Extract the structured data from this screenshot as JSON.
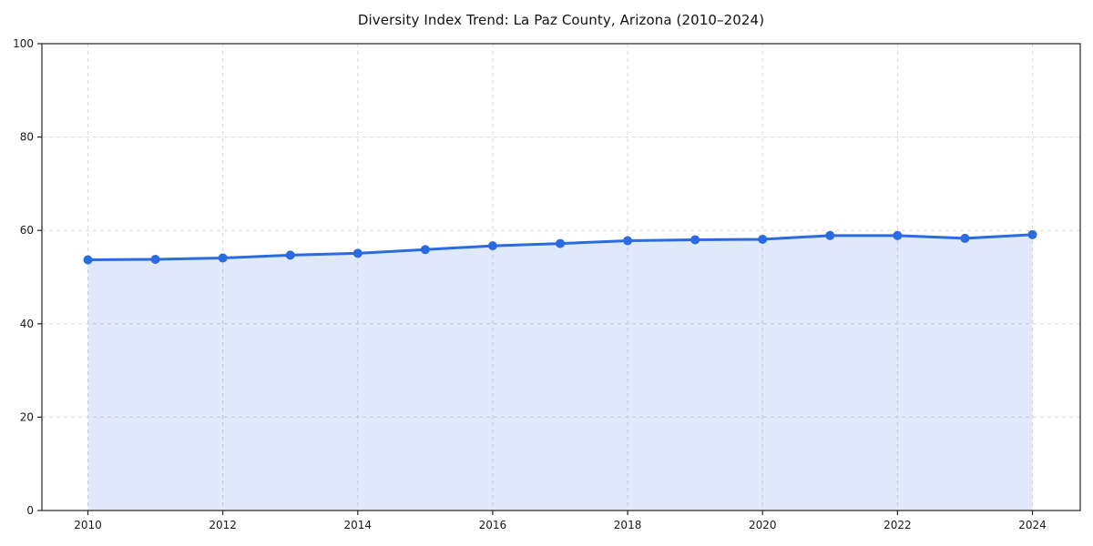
{
  "chart_data": {
    "type": "area",
    "title": "Diversity Index Trend: La Paz County, Arizona (2010–2024)",
    "xlabel": "",
    "ylabel": "",
    "x": [
      2010,
      2011,
      2012,
      2013,
      2014,
      2015,
      2016,
      2017,
      2018,
      2019,
      2020,
      2021,
      2022,
      2023,
      2024
    ],
    "series": [
      {
        "name": "Diversity Index",
        "values": [
          53.7,
          53.8,
          54.1,
          54.7,
          55.1,
          55.9,
          56.7,
          57.2,
          57.8,
          58.0,
          58.1,
          58.9,
          58.9,
          58.3,
          59.1
        ]
      }
    ],
    "xticks": [
      2010,
      2012,
      2014,
      2016,
      2018,
      2020,
      2022,
      2024
    ],
    "yticks": [
      0,
      20,
      40,
      60,
      80,
      100
    ],
    "ylim": [
      0,
      100
    ],
    "xlim": [
      2010,
      2024
    ],
    "grid": true,
    "grid_style": "dashed",
    "legend": false,
    "marker": "circle",
    "colors": {
      "line": "#2a6be2",
      "fill": "#2a6be2",
      "fill_opacity": 0.15,
      "grid": "#d9d9d9",
      "axis": "#262626",
      "tick_label": "#1a1a1a",
      "title": "#111111",
      "background": "#ffffff"
    }
  }
}
